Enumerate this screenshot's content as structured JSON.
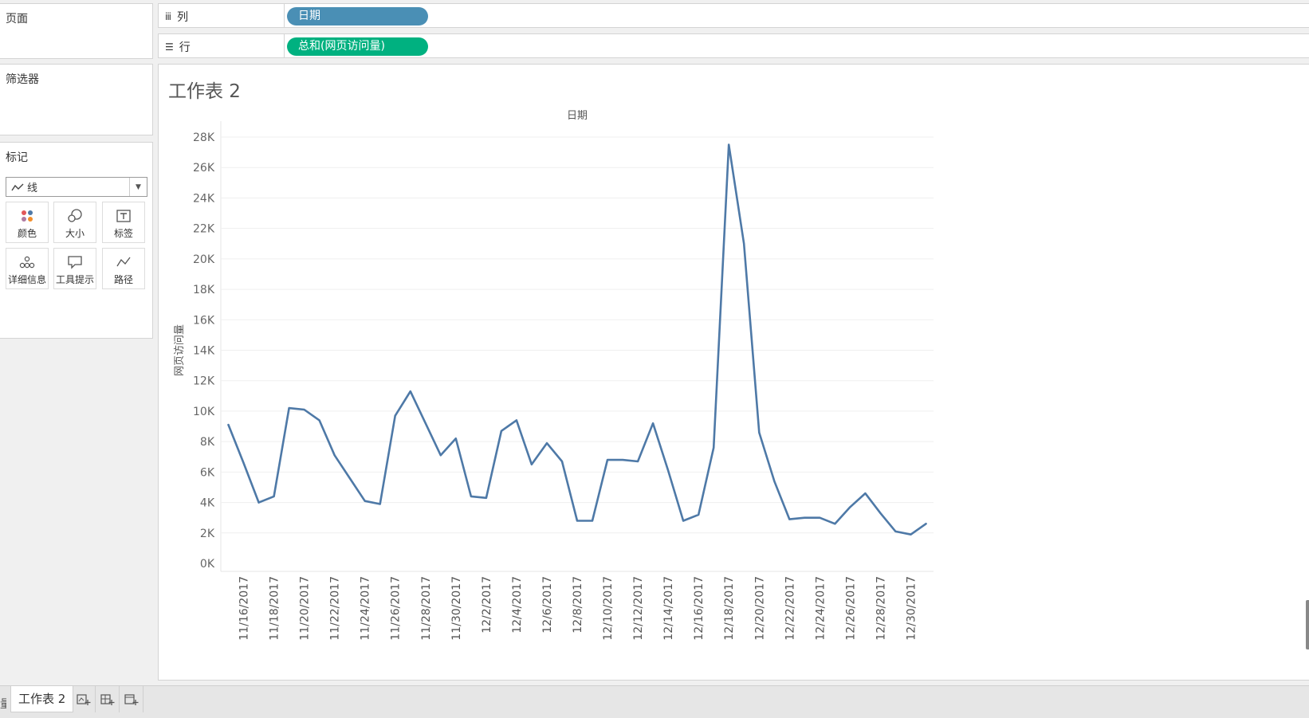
{
  "panels": {
    "pages": "页面",
    "filters": "筛选器",
    "marks": "标记"
  },
  "marks": {
    "type_label": "线",
    "buttons": {
      "color": "颜色",
      "size": "大小",
      "label": "标签",
      "detail": "详细信息",
      "tooltip": "工具提示",
      "path": "路径"
    }
  },
  "shelves": {
    "columns_label": "列",
    "columns_pill": "日期",
    "rows_label": "行",
    "rows_pill": "总和(网页访问量)"
  },
  "sheet": {
    "title": "工作表 2"
  },
  "tabs": {
    "fragment": "量",
    "active": "工作表 2"
  },
  "colors": {
    "line": "#4e79a7",
    "pill_dimension": "#4a8fb5",
    "pill_measure": "#00b180"
  },
  "chart_data": {
    "type": "line",
    "title": "",
    "header_label": "日期",
    "xlabel": "",
    "ylabel": "网页访问量",
    "x": [
      "11/15/2017",
      "11/16/2017",
      "11/17/2017",
      "11/18/2017",
      "11/19/2017",
      "11/20/2017",
      "11/21/2017",
      "11/22/2017",
      "11/23/2017",
      "11/24/2017",
      "11/25/2017",
      "11/26/2017",
      "11/27/2017",
      "11/28/2017",
      "11/29/2017",
      "11/30/2017",
      "12/1/2017",
      "12/2/2017",
      "12/3/2017",
      "12/4/2017",
      "12/5/2017",
      "12/6/2017",
      "12/7/2017",
      "12/8/2017",
      "12/9/2017",
      "12/10/2017",
      "12/11/2017",
      "12/12/2017",
      "12/13/2017",
      "12/14/2017",
      "12/15/2017",
      "12/16/2017",
      "12/17/2017",
      "12/18/2017",
      "12/19/2017",
      "12/20/2017",
      "12/21/2017",
      "12/22/2017",
      "12/23/2017",
      "12/24/2017",
      "12/25/2017",
      "12/26/2017",
      "12/27/2017",
      "12/28/2017",
      "12/29/2017",
      "12/30/2017",
      "12/31/2017"
    ],
    "series": [
      {
        "values": [
          9100,
          6600,
          4000,
          4400,
          10200,
          10100,
          9400,
          7100,
          5600,
          4100,
          3900,
          9700,
          11300,
          9200,
          7100,
          8200,
          4400,
          4300,
          8700,
          9400,
          6500,
          7900,
          6700,
          2800,
          2800,
          6800,
          6800,
          6700,
          9200,
          6100,
          2800,
          3200,
          7600,
          27500,
          21000,
          8600,
          5400,
          2900,
          3000,
          3000,
          2600,
          3700,
          4600,
          3300,
          2100,
          1900,
          2600
        ]
      }
    ],
    "x_tick_labels": [
      "11/16/2017",
      "11/18/2017",
      "11/20/2017",
      "11/22/2017",
      "11/24/2017",
      "11/26/2017",
      "11/28/2017",
      "11/30/2017",
      "12/2/2017",
      "12/4/2017",
      "12/6/2017",
      "12/8/2017",
      "12/10/2017",
      "12/12/2017",
      "12/14/2017",
      "12/16/2017",
      "12/18/2017",
      "12/20/2017",
      "12/22/2017",
      "12/24/2017",
      "12/26/2017",
      "12/28/2017",
      "12/30/2017"
    ],
    "y_ticks": [
      0,
      2000,
      4000,
      6000,
      8000,
      10000,
      12000,
      14000,
      16000,
      18000,
      20000,
      22000,
      24000,
      26000,
      28000
    ],
    "y_tick_labels": [
      "0K",
      "2K",
      "4K",
      "6K",
      "8K",
      "10K",
      "12K",
      "14K",
      "16K",
      "18K",
      "20K",
      "22K",
      "24K",
      "26K",
      "28K"
    ],
    "ylim": [
      0,
      28000
    ],
    "grid": true,
    "legend": "none"
  }
}
